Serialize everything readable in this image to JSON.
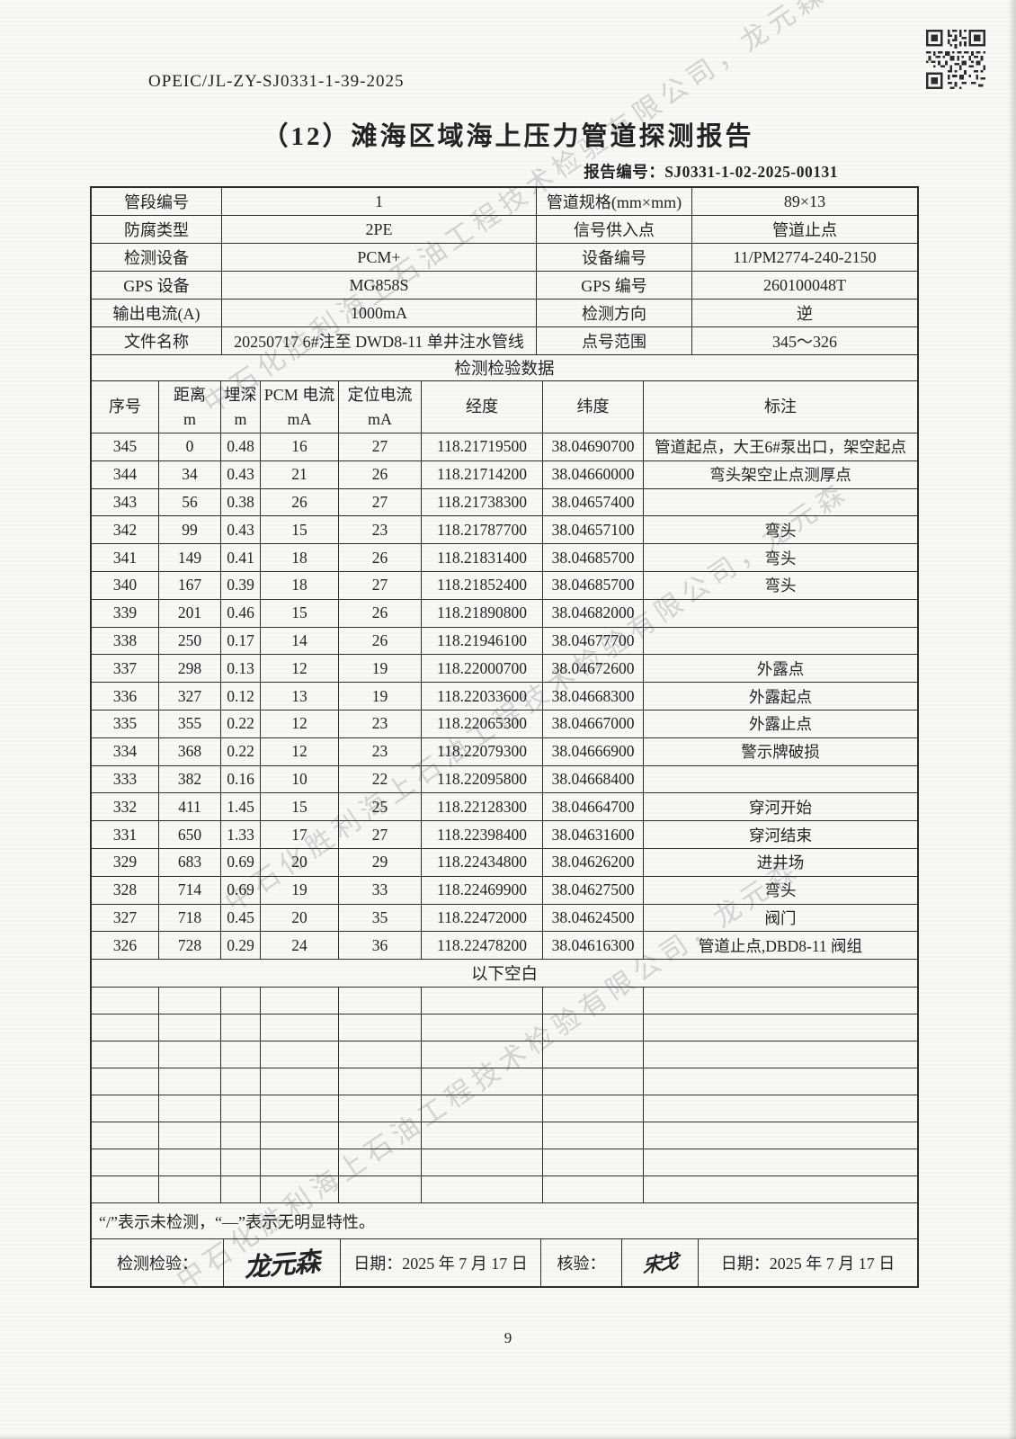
{
  "page": {
    "doc_code": "OPEIC/JL-ZY-SJ0331-1-39-2025",
    "title": "（12）滩海区域海上压力管道探测报告",
    "report_no": "报告编号：SJ0331-1-02-2025-00131",
    "watermark": "中石化胜利海上石油工程技术检验有限公司，龙元森",
    "qr_icon": "qr-code",
    "page_number": "9"
  },
  "info_table": {
    "rows": [
      {
        "l1": "管段编号",
        "v1": "1",
        "l2": "管道规格(mm×mm)",
        "v2": "89×13"
      },
      {
        "l1": "防腐类型",
        "v1": "2PE",
        "l2": "信号供入点",
        "v2": "管道止点"
      },
      {
        "l1": "检测设备",
        "v1": "PCM+",
        "l2": "设备编号",
        "v2": "11/PM2774-240-2150"
      },
      {
        "l1": "GPS 设备",
        "v1": "MG858S",
        "l2": "GPS 编号",
        "v2": "260100048T"
      },
      {
        "l1": "输出电流(A)",
        "v1": "1000mA",
        "l2": "检测方向",
        "v2": "逆"
      },
      {
        "l1": "文件名称",
        "v1": "20250717 6#注至 DWD8-11 单井注水管线",
        "l2": "点号范围",
        "v2": "345～326"
      }
    ]
  },
  "data_table": {
    "section_title": "检测检验数据",
    "headers": [
      {
        "label": "序号",
        "unit": ""
      },
      {
        "label": "距离",
        "unit": "m"
      },
      {
        "label": "埋深",
        "unit": "m"
      },
      {
        "label": "PCM 电流",
        "unit": "mA"
      },
      {
        "label": "定位电流",
        "unit": "mA"
      },
      {
        "label": "经度",
        "unit": ""
      },
      {
        "label": "纬度",
        "unit": ""
      },
      {
        "label": "标注",
        "unit": ""
      }
    ],
    "rows": [
      [
        "345",
        "0",
        "0.48",
        "16",
        "27",
        "118.21719500",
        "38.04690700",
        "管道起点，大王6#泵出口，架空起点"
      ],
      [
        "344",
        "34",
        "0.43",
        "21",
        "26",
        "118.21714200",
        "38.04660000",
        "弯头架空止点测厚点"
      ],
      [
        "343",
        "56",
        "0.38",
        "26",
        "27",
        "118.21738300",
        "38.04657400",
        ""
      ],
      [
        "342",
        "99",
        "0.43",
        "15",
        "23",
        "118.21787700",
        "38.04657100",
        "弯头"
      ],
      [
        "341",
        "149",
        "0.41",
        "18",
        "26",
        "118.21831400",
        "38.04685700",
        "弯头"
      ],
      [
        "340",
        "167",
        "0.39",
        "18",
        "27",
        "118.21852400",
        "38.04685700",
        "弯头"
      ],
      [
        "339",
        "201",
        "0.46",
        "15",
        "26",
        "118.21890800",
        "38.04682000",
        ""
      ],
      [
        "338",
        "250",
        "0.17",
        "14",
        "26",
        "118.21946100",
        "38.04677700",
        ""
      ],
      [
        "337",
        "298",
        "0.13",
        "12",
        "19",
        "118.22000700",
        "38.04672600",
        "外露点"
      ],
      [
        "336",
        "327",
        "0.12",
        "13",
        "19",
        "118.22033600",
        "38.04668300",
        "外露起点"
      ],
      [
        "335",
        "355",
        "0.22",
        "12",
        "23",
        "118.22065300",
        "38.04667000",
        "外露止点"
      ],
      [
        "334",
        "368",
        "0.22",
        "12",
        "23",
        "118.22079300",
        "38.04666900",
        "警示牌破损"
      ],
      [
        "333",
        "382",
        "0.16",
        "10",
        "22",
        "118.22095800",
        "38.04668400",
        ""
      ],
      [
        "332",
        "411",
        "1.45",
        "15",
        "25",
        "118.22128300",
        "38.04664700",
        "穿河开始"
      ],
      [
        "331",
        "650",
        "1.33",
        "17",
        "27",
        "118.22398400",
        "38.04631600",
        "穿河结束"
      ],
      [
        "329",
        "683",
        "0.69",
        "20",
        "29",
        "118.22434800",
        "38.04626200",
        "进井场"
      ],
      [
        "328",
        "714",
        "0.69",
        "19",
        "33",
        "118.22469900",
        "38.04627500",
        "弯头"
      ],
      [
        "327",
        "718",
        "0.45",
        "20",
        "35",
        "118.22472000",
        "38.04624500",
        "阀门"
      ],
      [
        "326",
        "728",
        "0.29",
        "24",
        "36",
        "118.22478200",
        "38.04616300",
        "管道止点,DBD8-11 阀组"
      ]
    ],
    "blank_label": "以下空白",
    "empty_row_count": 8
  },
  "footer": {
    "note": "“/”表示未检测，“—”表示无明显特性。",
    "inspector_label": "检测检验：",
    "inspector_signature": "龙元森",
    "date1": "日期：2025 年 7 月 17 日",
    "verifier_label": "核验：",
    "verifier_signature": "宋戈",
    "date2": "日期：2025 年 7 月 17 日"
  }
}
